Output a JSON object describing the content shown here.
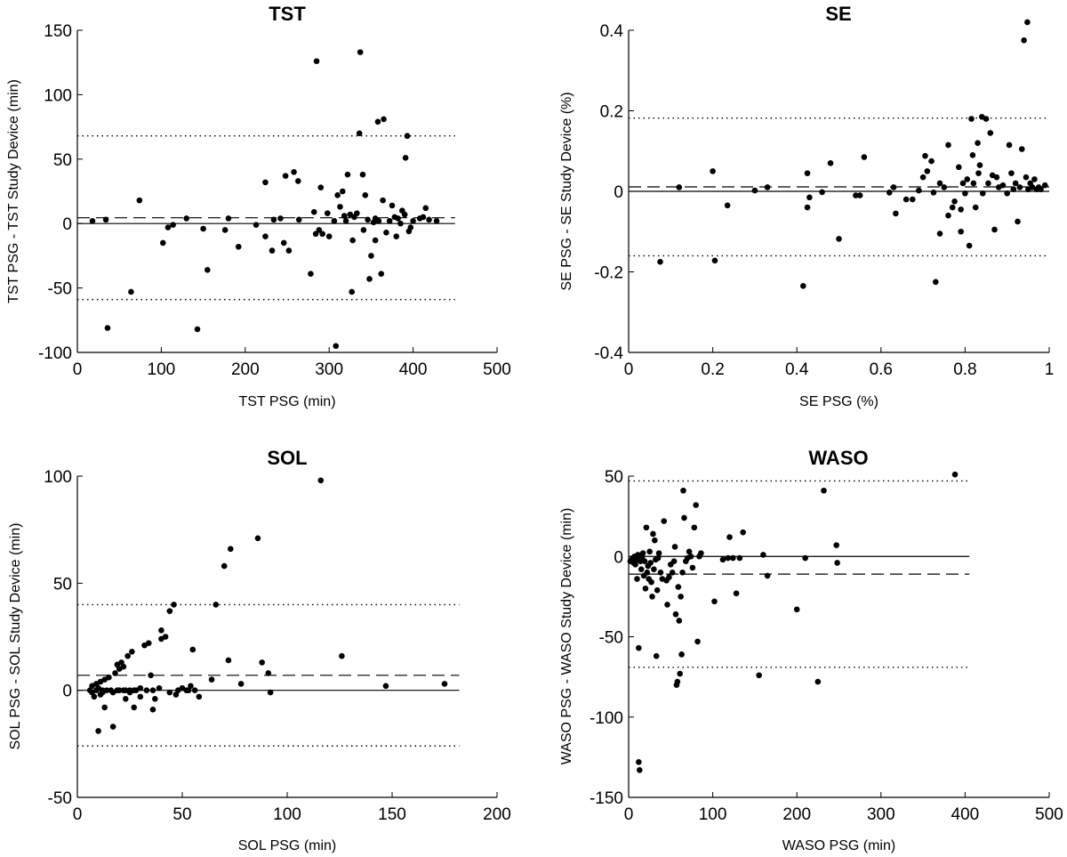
{
  "chart_data": [
    {
      "type": "scatter",
      "title": "TST",
      "xlabel": "TST PSG (min)",
      "ylabel": "TST PSG - TST Study Device (min)",
      "xlim": [
        0,
        500
      ],
      "ylim": [
        -100,
        150
      ],
      "xticks": [
        "0",
        "100",
        "200",
        "300",
        "400",
        "500"
      ],
      "yticks": [
        "-100",
        "-50",
        "0",
        "50",
        "100",
        "150"
      ],
      "xtick_values": [
        0,
        100,
        200,
        300,
        400,
        500
      ],
      "ytick_values": [
        -100,
        -50,
        0,
        50,
        100,
        150
      ],
      "lines": {
        "zero": 0,
        "mean": 4.5,
        "loa_upper": 68,
        "loa_lower": -59,
        "x_end": 450
      },
      "points": [
        [
          18,
          2
        ],
        [
          34,
          3
        ],
        [
          36,
          -81
        ],
        [
          64,
          -53
        ],
        [
          74,
          18
        ],
        [
          102,
          -15
        ],
        [
          108,
          -3
        ],
        [
          114,
          -1
        ],
        [
          130,
          4
        ],
        [
          143,
          -82
        ],
        [
          150,
          -4
        ],
        [
          155,
          -36
        ],
        [
          176,
          -5
        ],
        [
          180,
          4
        ],
        [
          192,
          -18
        ],
        [
          213,
          -1
        ],
        [
          224,
          -10
        ],
        [
          224,
          32
        ],
        [
          232,
          -21
        ],
        [
          234,
          3
        ],
        [
          242,
          4
        ],
        [
          246,
          -15
        ],
        [
          248,
          37
        ],
        [
          252,
          -21
        ],
        [
          258,
          40
        ],
        [
          263,
          33
        ],
        [
          264,
          3
        ],
        [
          278,
          -39
        ],
        [
          282,
          9
        ],
        [
          284,
          -8
        ],
        [
          285,
          126
        ],
        [
          288,
          -5
        ],
        [
          290,
          28
        ],
        [
          292,
          -8
        ],
        [
          298,
          8
        ],
        [
          300,
          -10
        ],
        [
          306,
          2
        ],
        [
          308,
          -95
        ],
        [
          310,
          22
        ],
        [
          313,
          13
        ],
        [
          316,
          25
        ],
        [
          318,
          6
        ],
        [
          320,
          2
        ],
        [
          322,
          38
        ],
        [
          325,
          7
        ],
        [
          327,
          -53
        ],
        [
          328,
          -13
        ],
        [
          330,
          5
        ],
        [
          333,
          8
        ],
        [
          336,
          70
        ],
        [
          337,
          133
        ],
        [
          340,
          38
        ],
        [
          341,
          -5
        ],
        [
          343,
          22
        ],
        [
          346,
          3
        ],
        [
          348,
          -43
        ],
        [
          350,
          -25
        ],
        [
          353,
          1
        ],
        [
          355,
          -13
        ],
        [
          355,
          4
        ],
        [
          358,
          79
        ],
        [
          359,
          2
        ],
        [
          362,
          -39
        ],
        [
          364,
          18
        ],
        [
          365,
          81
        ],
        [
          368,
          -7
        ],
        [
          372,
          2
        ],
        [
          375,
          14
        ],
        [
          378,
          5
        ],
        [
          380,
          -10
        ],
        [
          382,
          4
        ],
        [
          385,
          0
        ],
        [
          387,
          10
        ],
        [
          390,
          7
        ],
        [
          391,
          51
        ],
        [
          393,
          68
        ],
        [
          395,
          -6
        ],
        [
          397,
          -3
        ],
        [
          400,
          2
        ],
        [
          408,
          4
        ],
        [
          412,
          5
        ],
        [
          415,
          12
        ],
        [
          419,
          3
        ],
        [
          428,
          2
        ]
      ]
    },
    {
      "type": "scatter",
      "title": "SE",
      "xlabel": "SE PSG (%)",
      "ylabel": "SE PSG - SE Study Device (%)",
      "xlim": [
        0,
        1
      ],
      "ylim": [
        -0.4,
        0.4
      ],
      "xticks": [
        "0",
        "0.2",
        "0.4",
        "0.6",
        "0.8",
        "1"
      ],
      "yticks": [
        "-0.4",
        "-0.2",
        "0",
        "0.2",
        "0.4"
      ],
      "xtick_values": [
        0,
        0.2,
        0.4,
        0.6,
        0.8,
        1
      ],
      "ytick_values": [
        -0.4,
        -0.2,
        0,
        0.2,
        0.4
      ],
      "lines": {
        "zero": 0,
        "mean": 0.011,
        "loa_upper": 0.182,
        "loa_lower": -0.16,
        "x_end": 1
      },
      "points": [
        [
          0.075,
          -0.175
        ],
        [
          0.12,
          0.01
        ],
        [
          0.2,
          0.05
        ],
        [
          0.205,
          -0.172
        ],
        [
          0.235,
          -0.035
        ],
        [
          0.3,
          0.002
        ],
        [
          0.33,
          0.01
        ],
        [
          0.415,
          -0.235
        ],
        [
          0.425,
          0.045
        ],
        [
          0.425,
          -0.04
        ],
        [
          0.43,
          -0.015
        ],
        [
          0.46,
          -0.002
        ],
        [
          0.48,
          0.07
        ],
        [
          0.5,
          -0.118
        ],
        [
          0.54,
          -0.01
        ],
        [
          0.55,
          -0.01
        ],
        [
          0.56,
          0.085
        ],
        [
          0.62,
          -0.003
        ],
        [
          0.63,
          0.01
        ],
        [
          0.635,
          -0.055
        ],
        [
          0.66,
          -0.02
        ],
        [
          0.675,
          -0.02
        ],
        [
          0.69,
          0.002
        ],
        [
          0.7,
          0.035
        ],
        [
          0.705,
          0.088
        ],
        [
          0.71,
          0.05
        ],
        [
          0.72,
          0.075
        ],
        [
          0.725,
          -0.003
        ],
        [
          0.73,
          -0.225
        ],
        [
          0.74,
          0.02
        ],
        [
          0.74,
          -0.105
        ],
        [
          0.75,
          0.01
        ],
        [
          0.76,
          0.115
        ],
        [
          0.76,
          -0.06
        ],
        [
          0.77,
          -0.04
        ],
        [
          0.775,
          -0.025
        ],
        [
          0.785,
          0.06
        ],
        [
          0.79,
          -0.1
        ],
        [
          0.79,
          -0.045
        ],
        [
          0.795,
          0.02
        ],
        [
          0.8,
          -0.005
        ],
        [
          0.805,
          0.03
        ],
        [
          0.81,
          -0.135
        ],
        [
          0.815,
          0.18
        ],
        [
          0.818,
          0.09
        ],
        [
          0.82,
          0.02
        ],
        [
          0.825,
          -0.04
        ],
        [
          0.83,
          0.12
        ],
        [
          0.832,
          0.045
        ],
        [
          0.835,
          0.065
        ],
        [
          0.84,
          0.185
        ],
        [
          0.842,
          -0.005
        ],
        [
          0.85,
          0.18
        ],
        [
          0.855,
          0.02
        ],
        [
          0.86,
          0.145
        ],
        [
          0.865,
          0.04
        ],
        [
          0.87,
          -0.095
        ],
        [
          0.875,
          0.035
        ],
        [
          0.88,
          0.01
        ],
        [
          0.89,
          0.015
        ],
        [
          0.9,
          -0.005
        ],
        [
          0.905,
          0.115
        ],
        [
          0.91,
          0.045
        ],
        [
          0.915,
          0.005
        ],
        [
          0.92,
          0.02
        ],
        [
          0.925,
          -0.075
        ],
        [
          0.93,
          0.01
        ],
        [
          0.935,
          0.105
        ],
        [
          0.94,
          0.375
        ],
        [
          0.945,
          0.035
        ],
        [
          0.948,
          0.42
        ],
        [
          0.95,
          0.005
        ],
        [
          0.955,
          0.02
        ],
        [
          0.96,
          0.01
        ],
        [
          0.965,
          0.03
        ],
        [
          0.97,
          0.005
        ],
        [
          0.975,
          0.01
        ],
        [
          0.98,
          0.005
        ],
        [
          0.99,
          0.015
        ]
      ]
    },
    {
      "type": "scatter",
      "title": "SOL",
      "xlabel": "SOL PSG (min)",
      "ylabel": "SOL PSG - SOL Study Device (min)",
      "xlim": [
        0,
        200
      ],
      "ylim": [
        -50,
        100
      ],
      "xticks": [
        "0",
        "50",
        "100",
        "150",
        "200"
      ],
      "yticks": [
        "-50",
        "0",
        "50",
        "100"
      ],
      "xtick_values": [
        0,
        50,
        100,
        150,
        200
      ],
      "ytick_values": [
        -50,
        0,
        50,
        100
      ],
      "lines": {
        "zero": 0,
        "mean": 7,
        "loa_upper": 40,
        "loa_lower": -26,
        "x_end": 182
      },
      "points": [
        [
          6,
          0
        ],
        [
          7,
          2
        ],
        [
          7,
          -1
        ],
        [
          8,
          -3
        ],
        [
          9,
          3
        ],
        [
          9,
          0
        ],
        [
          10,
          -19
        ],
        [
          10,
          1
        ],
        [
          11,
          -2
        ],
        [
          11,
          4
        ],
        [
          12,
          0
        ],
        [
          12,
          -1
        ],
        [
          13,
          -8
        ],
        [
          13,
          5
        ],
        [
          14,
          0
        ],
        [
          15,
          6
        ],
        [
          16,
          0
        ],
        [
          17,
          -17
        ],
        [
          17,
          -1
        ],
        [
          18,
          8
        ],
        [
          19,
          0
        ],
        [
          19,
          12
        ],
        [
          20,
          0
        ],
        [
          20,
          10
        ],
        [
          21,
          13
        ],
        [
          22,
          11
        ],
        [
          22,
          0
        ],
        [
          23,
          -4
        ],
        [
          23,
          0
        ],
        [
          24,
          16
        ],
        [
          25,
          0
        ],
        [
          25,
          -1
        ],
        [
          26,
          18
        ],
        [
          27,
          0
        ],
        [
          27,
          -8
        ],
        [
          28,
          0
        ],
        [
          30,
          1
        ],
        [
          30,
          -3
        ],
        [
          32,
          21
        ],
        [
          33,
          0
        ],
        [
          34,
          22
        ],
        [
          35,
          7
        ],
        [
          36,
          0
        ],
        [
          36,
          -9
        ],
        [
          37,
          -4
        ],
        [
          39,
          1
        ],
        [
          40,
          24
        ],
        [
          40,
          28
        ],
        [
          42,
          25
        ],
        [
          44,
          -1
        ],
        [
          44,
          37
        ],
        [
          46,
          40
        ],
        [
          47,
          -2
        ],
        [
          48,
          0
        ],
        [
          50,
          1
        ],
        [
          52,
          0
        ],
        [
          53,
          0
        ],
        [
          54,
          2
        ],
        [
          55,
          19
        ],
        [
          56,
          0
        ],
        [
          58,
          -3
        ],
        [
          64,
          5
        ],
        [
          66,
          40
        ],
        [
          70,
          58
        ],
        [
          72,
          14
        ],
        [
          73,
          66
        ],
        [
          78,
          3
        ],
        [
          86,
          71
        ],
        [
          88,
          13
        ],
        [
          91,
          8
        ],
        [
          92,
          -1
        ],
        [
          116,
          98
        ],
        [
          126,
          16
        ],
        [
          147,
          2
        ],
        [
          175,
          3
        ]
      ]
    },
    {
      "type": "scatter",
      "title": "WASO",
      "xlabel": "WASO PSG (min)",
      "ylabel": "WASO PSG - WASO Study Device (min)",
      "xlim": [
        0,
        500
      ],
      "ylim": [
        -150,
        50
      ],
      "xticks": [
        "0",
        "100",
        "200",
        "300",
        "400",
        "500"
      ],
      "yticks": [
        "-150",
        "-100",
        "-50",
        "0",
        "50"
      ],
      "xtick_values": [
        0,
        100,
        200,
        300,
        400,
        500
      ],
      "ytick_values": [
        -150,
        -100,
        -50,
        0,
        50
      ],
      "lines": {
        "zero": 0,
        "mean": -11,
        "loa_upper": 47,
        "loa_lower": -69,
        "x_end": 405
      },
      "points": [
        [
          2,
          -3
        ],
        [
          4,
          -2
        ],
        [
          5,
          -1
        ],
        [
          6,
          -4
        ],
        [
          7,
          0
        ],
        [
          8,
          -5
        ],
        [
          9,
          -2
        ],
        [
          10,
          -1
        ],
        [
          10,
          -14
        ],
        [
          11,
          1
        ],
        [
          12,
          -128
        ],
        [
          12,
          -57
        ],
        [
          13,
          -133
        ],
        [
          14,
          -3
        ],
        [
          15,
          -8
        ],
        [
          16,
          -1
        ],
        [
          17,
          2
        ],
        [
          18,
          -12
        ],
        [
          19,
          -3
        ],
        [
          20,
          -20
        ],
        [
          21,
          18
        ],
        [
          22,
          -10
        ],
        [
          23,
          -6
        ],
        [
          24,
          -14
        ],
        [
          25,
          3
        ],
        [
          26,
          -4
        ],
        [
          27,
          -16
        ],
        [
          28,
          -25
        ],
        [
          29,
          14
        ],
        [
          30,
          -8
        ],
        [
          31,
          10
        ],
        [
          32,
          -2
        ],
        [
          33,
          -62
        ],
        [
          34,
          -21
        ],
        [
          35,
          -1
        ],
        [
          36,
          2
        ],
        [
          38,
          -10
        ],
        [
          40,
          -14
        ],
        [
          42,
          22
        ],
        [
          45,
          -15
        ],
        [
          46,
          -30
        ],
        [
          48,
          -13
        ],
        [
          50,
          -5
        ],
        [
          52,
          -10
        ],
        [
          54,
          -3
        ],
        [
          55,
          6
        ],
        [
          56,
          -36
        ],
        [
          57,
          -80
        ],
        [
          58,
          -78
        ],
        [
          59,
          -19
        ],
        [
          60,
          -40
        ],
        [
          61,
          -73
        ],
        [
          62,
          -25
        ],
        [
          63,
          -61
        ],
        [
          64,
          -10
        ],
        [
          65,
          41
        ],
        [
          66,
          24
        ],
        [
          68,
          -3
        ],
        [
          70,
          -1
        ],
        [
          72,
          3
        ],
        [
          74,
          0
        ],
        [
          76,
          -7
        ],
        [
          78,
          18
        ],
        [
          80,
          32
        ],
        [
          82,
          -53
        ],
        [
          84,
          0
        ],
        [
          86,
          2
        ],
        [
          102,
          -28
        ],
        [
          112,
          -2
        ],
        [
          118,
          -1
        ],
        [
          120,
          12
        ],
        [
          124,
          -1
        ],
        [
          128,
          -23
        ],
        [
          132,
          -1
        ],
        [
          136,
          15
        ],
        [
          155,
          -74
        ],
        [
          160,
          1
        ],
        [
          165,
          -12
        ],
        [
          200,
          -33
        ],
        [
          210,
          -1
        ],
        [
          225,
          -78
        ],
        [
          232,
          41
        ],
        [
          247,
          7
        ],
        [
          248,
          -4
        ],
        [
          388,
          51
        ]
      ]
    }
  ]
}
